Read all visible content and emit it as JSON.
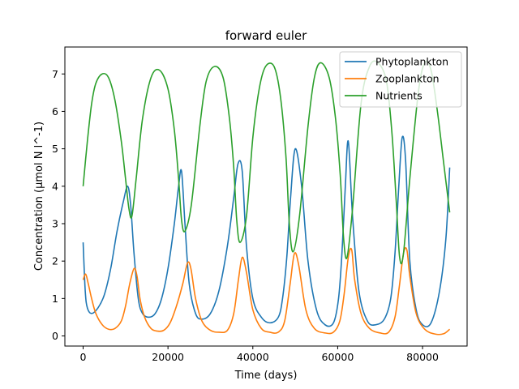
{
  "chart_data": {
    "type": "line",
    "title": "forward euler",
    "xlabel": "Time (days)",
    "ylabel": "Concentration (µmol N l^-1)",
    "xlim": [
      -4300,
      90500
    ],
    "ylim": [
      -0.27,
      7.72
    ],
    "xticks": [
      0,
      20000,
      40000,
      60000,
      80000
    ],
    "xtick_labels": [
      "0",
      "20000",
      "40000",
      "60000",
      "80000"
    ],
    "yticks": [
      0,
      1,
      2,
      3,
      4,
      5,
      6,
      7
    ],
    "ytick_labels": [
      "0",
      "1",
      "2",
      "3",
      "4",
      "5",
      "6",
      "7"
    ],
    "grid": false,
    "legend_position": "top-right",
    "series": [
      {
        "name": "Phytoplankton",
        "color": "#1f77b4",
        "x": [
          0,
          500,
          1000,
          2000,
          3500,
          5000,
          6500,
          8000,
          9500,
          10500,
          11200,
          12000,
          13000,
          14000,
          15500,
          17000,
          18500,
          20000,
          21500,
          22500,
          23200,
          24000,
          25000,
          26500,
          28000,
          30000,
          32000,
          34000,
          35500,
          36500,
          37500,
          38500,
          40000,
          42000,
          44000,
          46000,
          47000,
          48000,
          48900,
          50000,
          51500,
          53000,
          55000,
          57000,
          59000,
          60200,
          61000,
          61800,
          62500,
          63500,
          65000,
          67000,
          69000,
          71000,
          72500,
          73500,
          74400,
          75200,
          76000,
          77000,
          78500,
          80000,
          82000,
          84000,
          85500,
          86400
        ],
        "y": [
          2.5,
          1.2,
          0.75,
          0.6,
          0.75,
          1.1,
          1.8,
          2.8,
          3.6,
          4.0,
          3.5,
          2.2,
          1.0,
          0.6,
          0.5,
          0.6,
          1.0,
          1.8,
          3.0,
          4.0,
          4.4,
          3.0,
          1.4,
          0.6,
          0.45,
          0.6,
          1.2,
          2.4,
          3.7,
          4.6,
          4.4,
          2.4,
          1.0,
          0.5,
          0.35,
          0.5,
          1.0,
          2.1,
          3.7,
          5.0,
          4.0,
          2.0,
          0.7,
          0.3,
          0.35,
          1.0,
          2.2,
          4.0,
          5.2,
          3.2,
          1.2,
          0.4,
          0.3,
          0.45,
          1.0,
          2.2,
          4.0,
          5.3,
          4.7,
          2.0,
          0.7,
          0.3,
          0.35,
          1.2,
          2.6,
          4.5
        ]
      },
      {
        "name": "Zooplankton",
        "color": "#ff7f0e",
        "x": [
          0,
          600,
          1200,
          2000,
          3000,
          4500,
          6000,
          7500,
          9000,
          10000,
          11000,
          12000,
          12700,
          13400,
          14500,
          16000,
          17500,
          19000,
          20500,
          22000,
          23500,
          24600,
          25400,
          26500,
          28000,
          30000,
          32000,
          34000,
          35500,
          36600,
          37500,
          38500,
          40000,
          42000,
          44000,
          46000,
          47500,
          48800,
          49800,
          50800,
          52500,
          54500,
          57000,
          59000,
          60500,
          61500,
          62500,
          63300,
          64000,
          65500,
          67500,
          70000,
          72000,
          73500,
          74500,
          75500,
          76300,
          77000,
          78500,
          80500,
          83000,
          85000,
          86400
        ],
        "y": [
          1.5,
          1.65,
          1.4,
          1.0,
          0.6,
          0.3,
          0.18,
          0.2,
          0.4,
          0.8,
          1.4,
          1.8,
          1.6,
          1.0,
          0.5,
          0.2,
          0.13,
          0.15,
          0.35,
          0.8,
          1.4,
          1.95,
          1.8,
          1.0,
          0.4,
          0.15,
          0.1,
          0.15,
          0.6,
          1.5,
          2.1,
          1.7,
          0.7,
          0.2,
          0.1,
          0.1,
          0.4,
          1.4,
          2.2,
          1.9,
          0.7,
          0.2,
          0.08,
          0.1,
          0.4,
          1.1,
          2.1,
          2.3,
          1.5,
          0.6,
          0.2,
          0.08,
          0.1,
          0.5,
          1.3,
          2.2,
          2.3,
          1.6,
          0.6,
          0.18,
          0.05,
          0.06,
          0.18
        ]
      },
      {
        "name": "Nutrients",
        "color": "#2ca02c",
        "x": [
          0,
          1000,
          2000,
          3000,
          4500,
          6000,
          7500,
          9000,
          10000,
          10800,
          11500,
          12500,
          14000,
          16000,
          18000,
          20000,
          21500,
          22500,
          23200,
          24000,
          25500,
          27500,
          29000,
          31000,
          33000,
          34500,
          35500,
          36200,
          37000,
          38500,
          40000,
          41500,
          43000,
          45000,
          46500,
          47800,
          48600,
          49500,
          51000,
          53000,
          54500,
          56000,
          58000,
          59500,
          60600,
          61400,
          62200,
          63500,
          65500,
          67500,
          69500,
          71500,
          72800,
          73800,
          74600,
          75500,
          77000,
          79000,
          80500,
          82000,
          83500,
          85000,
          86400
        ],
        "y": [
          4.0,
          5.2,
          6.2,
          6.75,
          7.0,
          6.9,
          6.3,
          5.2,
          4.2,
          3.4,
          3.2,
          4.2,
          5.8,
          6.9,
          7.1,
          6.6,
          5.5,
          4.2,
          3.1,
          2.8,
          3.5,
          5.6,
          6.8,
          7.2,
          6.9,
          5.8,
          4.5,
          3.1,
          2.5,
          3.2,
          5.3,
          6.6,
          7.2,
          7.2,
          6.4,
          4.8,
          3.0,
          2.25,
          3.2,
          5.6,
          6.9,
          7.3,
          6.9,
          5.8,
          4.3,
          2.6,
          2.1,
          3.4,
          6.2,
          7.2,
          7.3,
          6.8,
          5.4,
          3.6,
          2.1,
          2.2,
          4.2,
          6.5,
          7.3,
          7.1,
          6.0,
          4.6,
          3.3
        ]
      }
    ]
  }
}
